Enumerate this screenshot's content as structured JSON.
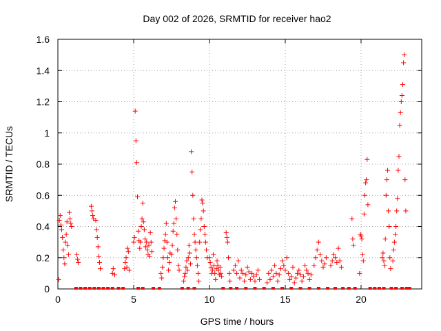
{
  "chart_data": {
    "type": "scatter",
    "title": "Day 002 of 2026, SRMTID for receiver hao2",
    "xlabel": "GPS time / hours",
    "ylabel": "SRMTID / TECUs",
    "xlim": [
      0,
      24
    ],
    "ylim": [
      0,
      1.6
    ],
    "xticks": [
      0,
      5,
      10,
      15,
      20
    ],
    "xtick_labels": [
      "0",
      "5",
      "10",
      "15",
      "20"
    ],
    "yticks": [
      0,
      0.2,
      0.4,
      0.6,
      0.8,
      1.0,
      1.2,
      1.4,
      1.6
    ],
    "ytick_labels": [
      "0",
      "0.2",
      "0.4",
      "0.6",
      "0.8",
      "1",
      "1.2",
      "1.4",
      "1.6"
    ],
    "grid": true,
    "marker": "+",
    "color": "#ff0000",
    "series": [
      {
        "name": "SRMTID",
        "points": [
          [
            0.05,
            0.06
          ],
          [
            0.1,
            0.44
          ],
          [
            0.15,
            0.47
          ],
          [
            0.2,
            0.41
          ],
          [
            0.25,
            0.38
          ],
          [
            0.3,
            0.33
          ],
          [
            0.35,
            0.25
          ],
          [
            0.4,
            0.2
          ],
          [
            0.45,
            0.16
          ],
          [
            0.5,
            0.3
          ],
          [
            0.55,
            0.35
          ],
          [
            0.6,
            0.43
          ],
          [
            0.65,
            0.28
          ],
          [
            0.7,
            0.22
          ],
          [
            0.75,
            0.49
          ],
          [
            0.8,
            0.45
          ],
          [
            0.85,
            0.42
          ],
          [
            0.9,
            0.4
          ],
          [
            1.25,
            0.22
          ],
          [
            1.3,
            0.19
          ],
          [
            1.35,
            0.17
          ],
          [
            2.2,
            0.53
          ],
          [
            2.25,
            0.5
          ],
          [
            2.3,
            0.47
          ],
          [
            2.35,
            0.45
          ],
          [
            2.5,
            0.44
          ],
          [
            2.55,
            0.38
          ],
          [
            2.6,
            0.33
          ],
          [
            2.65,
            0.27
          ],
          [
            2.7,
            0.21
          ],
          [
            2.75,
            0.17
          ],
          [
            2.8,
            0.13
          ],
          [
            3.6,
            0.1
          ],
          [
            3.65,
            0.13
          ],
          [
            3.75,
            0.09
          ],
          [
            4.4,
            0.13
          ],
          [
            4.45,
            0.17
          ],
          [
            4.5,
            0.2
          ],
          [
            4.55,
            0.14
          ],
          [
            4.6,
            0.26
          ],
          [
            4.65,
            0.24
          ],
          [
            4.7,
            0.12
          ],
          [
            5.0,
            0.3
          ],
          [
            5.05,
            0.33
          ],
          [
            5.1,
            1.14
          ],
          [
            5.15,
            0.95
          ],
          [
            5.2,
            0.81
          ],
          [
            5.25,
            0.59
          ],
          [
            5.3,
            0.37
          ],
          [
            5.35,
            0.31
          ],
          [
            5.4,
            0.26
          ],
          [
            5.45,
            0.3
          ],
          [
            5.5,
            0.4
          ],
          [
            5.55,
            0.45
          ],
          [
            5.6,
            0.55
          ],
          [
            5.65,
            0.43
          ],
          [
            5.7,
            0.38
          ],
          [
            5.75,
            0.32
          ],
          [
            5.8,
            0.27
          ],
          [
            5.85,
            0.3
          ],
          [
            5.9,
            0.25
          ],
          [
            5.95,
            0.22
          ],
          [
            6.0,
            0.28
          ],
          [
            6.05,
            0.21
          ],
          [
            6.1,
            0.36
          ],
          [
            6.15,
            0.3
          ],
          [
            6.2,
            0.24
          ],
          [
            6.8,
            0.1
          ],
          [
            6.85,
            0.07
          ],
          [
            6.9,
            0.14
          ],
          [
            6.95,
            0.2
          ],
          [
            7.0,
            0.26
          ],
          [
            7.05,
            0.31
          ],
          [
            7.1,
            0.35
          ],
          [
            7.15,
            0.42
          ],
          [
            7.2,
            0.3
          ],
          [
            7.25,
            0.2
          ],
          [
            7.3,
            0.12
          ],
          [
            7.35,
            0.17
          ],
          [
            7.4,
            0.23
          ],
          [
            7.5,
            0.22
          ],
          [
            7.55,
            0.28
          ],
          [
            7.6,
            0.37
          ],
          [
            7.65,
            0.42
          ],
          [
            7.7,
            0.52
          ],
          [
            7.75,
            0.56
          ],
          [
            7.8,
            0.45
          ],
          [
            7.85,
            0.35
          ],
          [
            7.9,
            0.25
          ],
          [
            7.95,
            0.15
          ],
          [
            8.0,
            0.12
          ],
          [
            8.3,
            0.05
          ],
          [
            8.35,
            0.08
          ],
          [
            8.4,
            0.1
          ],
          [
            8.45,
            0.14
          ],
          [
            8.5,
            0.18
          ],
          [
            8.55,
            0.12
          ],
          [
            8.6,
            0.2
          ],
          [
            8.65,
            0.28
          ],
          [
            8.7,
            0.23
          ],
          [
            8.75,
            0.16
          ],
          [
            8.8,
            0.88
          ],
          [
            8.85,
            0.75
          ],
          [
            8.9,
            0.6
          ],
          [
            8.95,
            0.45
          ],
          [
            9.0,
            0.35
          ],
          [
            9.05,
            0.3
          ],
          [
            9.1,
            0.25
          ],
          [
            9.15,
            0.2
          ],
          [
            9.2,
            0.15
          ],
          [
            9.25,
            0.1
          ],
          [
            9.3,
            0.05
          ],
          [
            9.35,
            0.3
          ],
          [
            9.4,
            0.38
          ],
          [
            9.45,
            0.45
          ],
          [
            9.5,
            0.57
          ],
          [
            9.55,
            0.55
          ],
          [
            9.6,
            0.5
          ],
          [
            9.65,
            0.4
          ],
          [
            9.7,
            0.35
          ],
          [
            9.75,
            0.3
          ],
          [
            9.8,
            0.25
          ],
          [
            9.85,
            0.2
          ],
          [
            10.0,
            0.2
          ],
          [
            10.05,
            0.17
          ],
          [
            10.1,
            0.14
          ],
          [
            10.15,
            0.1
          ],
          [
            10.2,
            0.12
          ],
          [
            10.25,
            0.22
          ],
          [
            10.3,
            0.15
          ],
          [
            10.35,
            0.1
          ],
          [
            10.4,
            0.06
          ],
          [
            10.45,
            0.13
          ],
          [
            10.5,
            0.18
          ],
          [
            10.55,
            0.15
          ],
          [
            10.6,
            0.12
          ],
          [
            10.65,
            0.09
          ],
          [
            10.7,
            0.14
          ],
          [
            10.75,
            0.1
          ],
          [
            10.8,
            0.08
          ],
          [
            11.1,
            0.36
          ],
          [
            11.15,
            0.33
          ],
          [
            11.2,
            0.3
          ],
          [
            11.25,
            0.2
          ],
          [
            11.3,
            0.1
          ],
          [
            11.35,
            0.05
          ],
          [
            11.6,
            0.12
          ],
          [
            11.7,
            0.15
          ],
          [
            11.8,
            0.1
          ],
          [
            11.9,
            0.18
          ],
          [
            12.0,
            0.07
          ],
          [
            12.1,
            0.12
          ],
          [
            12.2,
            0.1
          ],
          [
            12.3,
            0.05
          ],
          [
            12.4,
            0.09
          ],
          [
            12.5,
            0.14
          ],
          [
            12.6,
            0.11
          ],
          [
            12.7,
            0.06
          ],
          [
            12.8,
            0.1
          ],
          [
            12.9,
            0.08
          ],
          [
            13.0,
            0.05
          ],
          [
            13.1,
            0.09
          ],
          [
            13.2,
            0.12
          ],
          [
            13.3,
            0.06
          ],
          [
            13.8,
            0.04
          ],
          [
            13.9,
            0.1
          ],
          [
            14.0,
            0.06
          ],
          [
            14.1,
            0.12
          ],
          [
            14.2,
            0.08
          ],
          [
            14.3,
            0.15
          ],
          [
            14.4,
            0.1
          ],
          [
            14.5,
            0.05
          ],
          [
            14.6,
            0.09
          ],
          [
            14.7,
            0.13
          ],
          [
            14.8,
            0.18
          ],
          [
            14.9,
            0.15
          ],
          [
            15.0,
            0.12
          ],
          [
            15.1,
            0.2
          ],
          [
            15.2,
            0.1
          ],
          [
            15.3,
            0.06
          ],
          [
            15.4,
            0.08
          ],
          [
            15.5,
            0.14
          ],
          [
            15.6,
            0.04
          ],
          [
            15.7,
            0.07
          ],
          [
            15.8,
            0.1
          ],
          [
            15.9,
            0.12
          ],
          [
            16.0,
            0.09
          ],
          [
            16.1,
            0.05
          ],
          [
            16.2,
            0.08
          ],
          [
            16.3,
            0.15
          ],
          [
            16.4,
            0.12
          ],
          [
            16.5,
            0.1
          ],
          [
            16.6,
            0.06
          ],
          [
            16.7,
            0.09
          ],
          [
            16.9,
            0.15
          ],
          [
            17.0,
            0.2
          ],
          [
            17.1,
            0.25
          ],
          [
            17.2,
            0.3
          ],
          [
            17.3,
            0.22
          ],
          [
            17.4,
            0.18
          ],
          [
            17.5,
            0.14
          ],
          [
            17.6,
            0.16
          ],
          [
            17.7,
            0.2
          ],
          [
            18.0,
            0.15
          ],
          [
            18.1,
            0.18
          ],
          [
            18.2,
            0.22
          ],
          [
            18.3,
            0.2
          ],
          [
            18.4,
            0.17
          ],
          [
            18.5,
            0.26
          ],
          [
            18.6,
            0.18
          ],
          [
            18.7,
            0.14
          ],
          [
            19.4,
            0.45
          ],
          [
            19.45,
            0.32
          ],
          [
            19.5,
            0.28
          ],
          [
            19.9,
            0.1
          ],
          [
            19.95,
            0.35
          ],
          [
            20.0,
            0.34
          ],
          [
            20.05,
            0.32
          ],
          [
            20.1,
            0.22
          ],
          [
            20.15,
            0.18
          ],
          [
            20.2,
            0.48
          ],
          [
            20.25,
            0.6
          ],
          [
            20.3,
            0.68
          ],
          [
            20.35,
            0.7
          ],
          [
            20.4,
            0.83
          ],
          [
            20.45,
            0.54
          ],
          [
            21.4,
            0.2
          ],
          [
            21.45,
            0.23
          ],
          [
            21.5,
            0.18
          ],
          [
            21.55,
            0.15
          ],
          [
            21.6,
            0.32
          ],
          [
            21.65,
            0.6
          ],
          [
            21.7,
            0.7
          ],
          [
            21.75,
            0.76
          ],
          [
            21.8,
            0.5
          ],
          [
            21.85,
            0.4
          ],
          [
            21.9,
            0.2
          ],
          [
            21.95,
            0.13
          ],
          [
            22.1,
            0.18
          ],
          [
            22.15,
            0.25
          ],
          [
            22.2,
            0.3
          ],
          [
            22.25,
            0.35
          ],
          [
            22.3,
            0.4
          ],
          [
            22.35,
            0.5
          ],
          [
            22.4,
            0.58
          ],
          [
            22.45,
            0.76
          ],
          [
            22.5,
            0.85
          ],
          [
            22.55,
            1.05
          ],
          [
            22.6,
            1.13
          ],
          [
            22.65,
            1.2
          ],
          [
            22.7,
            1.24
          ],
          [
            22.75,
            1.31
          ],
          [
            22.8,
            1.45
          ],
          [
            22.85,
            1.5
          ],
          [
            22.9,
            0.7
          ],
          [
            22.95,
            0.5
          ]
        ],
        "zero_points": [
          1.2,
          1.5,
          1.8,
          2.1,
          2.4,
          2.7,
          3.0,
          3.3,
          3.6,
          4.0,
          4.3,
          5.3,
          5.6,
          6.3,
          6.7,
          8.2,
          8.6,
          9.0,
          10.9,
          11.4,
          11.8,
          12.4,
          13.0,
          13.6,
          14.2,
          14.8,
          15.4,
          16.0,
          16.6,
          17.2,
          17.8,
          18.3,
          18.8,
          19.2,
          19.6,
          20.6,
          20.9,
          21.2,
          21.5,
          22.0,
          22.3,
          22.7,
          23.0,
          23.2
        ]
      }
    ]
  }
}
